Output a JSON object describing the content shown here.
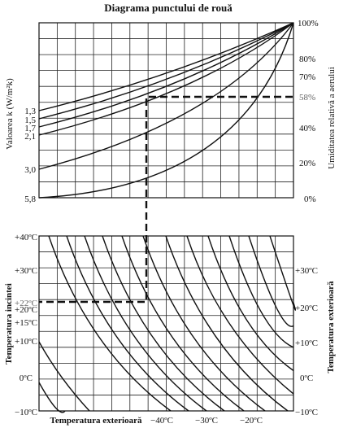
{
  "chart_data": [
    {
      "type": "line",
      "title": "Diagrama punctului de rouă",
      "ylabel": "Valoarea k (W/m²k)",
      "y2label": "Umiditatea relativă a aerului",
      "k_values": [
        "1,3",
        "1,5",
        "1,7",
        "2,1",
        "3,0",
        "5,8"
      ],
      "humidity_ticks": [
        "100%",
        "80%",
        "70%",
        "58%",
        "40%",
        "20%",
        "0%"
      ],
      "highlight_humidity": "58%"
    },
    {
      "type": "line",
      "ylabel": "Temperatura incintei",
      "xlabel": "Temperatura exterioară",
      "y2label": "Temperatura exterioară",
      "left_ticks": [
        "+40ºC",
        "+30ºC",
        "+22ºC",
        "+20ºC",
        "+15ºC",
        "+10ºC",
        "0ºC",
        "−10ºC"
      ],
      "right_ticks": [
        "+30ºC",
        "+20ºC",
        "+10ºC",
        "0ºC",
        "−10ºC"
      ],
      "x_ticks": [
        "−40ºC",
        "−30ºC",
        "−20ºC"
      ],
      "highlight_inside": "+22ºC"
    }
  ]
}
